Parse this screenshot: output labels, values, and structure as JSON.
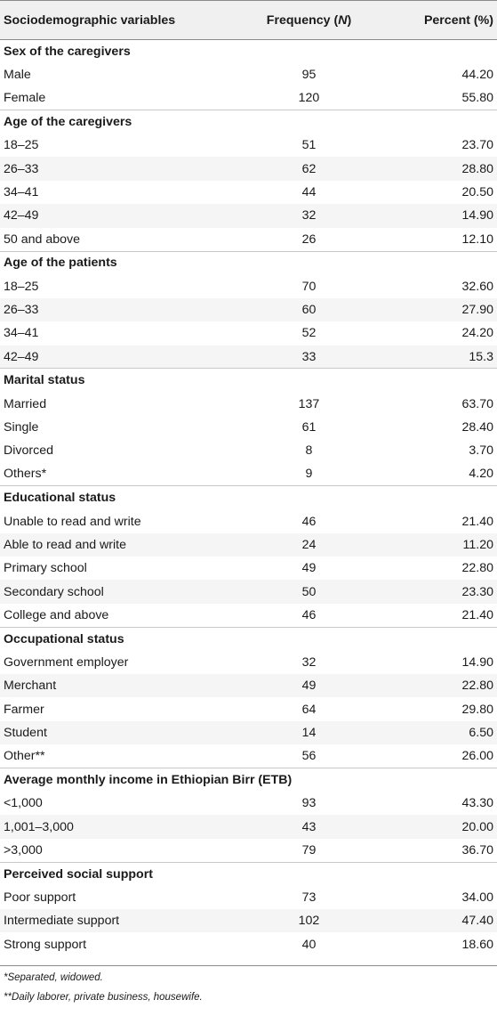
{
  "headers": {
    "variable": "Sociodemographic variables",
    "frequency_pre": "Frequency (",
    "frequency_n": "N",
    "frequency_post": ")",
    "percent": "Percent (%)"
  },
  "rows": [
    {
      "type": "section",
      "label": "Sex of the caregivers"
    },
    {
      "type": "data",
      "label": "Male",
      "freq": "95",
      "pct": "44.20"
    },
    {
      "type": "data",
      "label": "Female",
      "freq": "120",
      "pct": "55.80"
    },
    {
      "type": "section",
      "label": "Age of the caregivers"
    },
    {
      "type": "data",
      "label": "18–25",
      "freq": "51",
      "pct": "23.70"
    },
    {
      "type": "data",
      "label": "26–33",
      "freq": "62",
      "pct": "28.80"
    },
    {
      "type": "data",
      "label": "34–41",
      "freq": "44",
      "pct": "20.50"
    },
    {
      "type": "data",
      "label": "42–49",
      "freq": "32",
      "pct": "14.90"
    },
    {
      "type": "data",
      "label": "50 and above",
      "freq": "26",
      "pct": "12.10"
    },
    {
      "type": "section",
      "label": "Age of the patients"
    },
    {
      "type": "data",
      "label": "18–25",
      "freq": "70",
      "pct": "32.60"
    },
    {
      "type": "data",
      "label": "26–33",
      "freq": "60",
      "pct": "27.90"
    },
    {
      "type": "data",
      "label": "34–41",
      "freq": "52",
      "pct": "24.20"
    },
    {
      "type": "data",
      "label": "42–49",
      "freq": "33",
      "pct": "15.3"
    },
    {
      "type": "section",
      "label": "Marital status"
    },
    {
      "type": "data",
      "label": "Married",
      "freq": "137",
      "pct": "63.70"
    },
    {
      "type": "data",
      "label": "Single",
      "freq": "61",
      "pct": "28.40"
    },
    {
      "type": "data",
      "label": "Divorced",
      "freq": "8",
      "pct": "3.70"
    },
    {
      "type": "data",
      "label": "Others*",
      "freq": "9",
      "pct": "4.20"
    },
    {
      "type": "section",
      "label": "Educational status"
    },
    {
      "type": "data",
      "label": "Unable to read and write",
      "freq": "46",
      "pct": "21.40"
    },
    {
      "type": "data",
      "label": "Able to read and write",
      "freq": "24",
      "pct": "11.20"
    },
    {
      "type": "data",
      "label": "Primary school",
      "freq": "49",
      "pct": "22.80"
    },
    {
      "type": "data",
      "label": "Secondary school",
      "freq": "50",
      "pct": "23.30"
    },
    {
      "type": "data",
      "label": "College and above",
      "freq": "46",
      "pct": "21.40"
    },
    {
      "type": "section",
      "label": "Occupational status"
    },
    {
      "type": "data",
      "label": "Government employer",
      "freq": "32",
      "pct": "14.90"
    },
    {
      "type": "data",
      "label": "Merchant",
      "freq": "49",
      "pct": "22.80"
    },
    {
      "type": "data",
      "label": "Farmer",
      "freq": "64",
      "pct": "29.80"
    },
    {
      "type": "data",
      "label": "Student",
      "freq": "14",
      "pct": "6.50"
    },
    {
      "type": "data",
      "label": "Other**",
      "freq": "56",
      "pct": "26.00"
    },
    {
      "type": "section",
      "label": "Average monthly income in Ethiopian Birr (ETB)"
    },
    {
      "type": "data",
      "label": "<1,000",
      "freq": "93",
      "pct": "43.30"
    },
    {
      "type": "data",
      "label": "1,001–3,000",
      "freq": "43",
      "pct": "20.00"
    },
    {
      "type": "data",
      "label": ">3,000",
      "freq": "79",
      "pct": "36.70"
    },
    {
      "type": "section",
      "label": "Perceived social support"
    },
    {
      "type": "data",
      "label": "Poor support",
      "freq": "73",
      "pct": "34.00"
    },
    {
      "type": "data",
      "label": "Intermediate support",
      "freq": "102",
      "pct": "47.40"
    },
    {
      "type": "data",
      "label": "Strong support",
      "freq": "40",
      "pct": "18.60"
    }
  ],
  "footnotes": [
    "*Separated, widowed.",
    "**Daily laborer, private business, housewife."
  ]
}
